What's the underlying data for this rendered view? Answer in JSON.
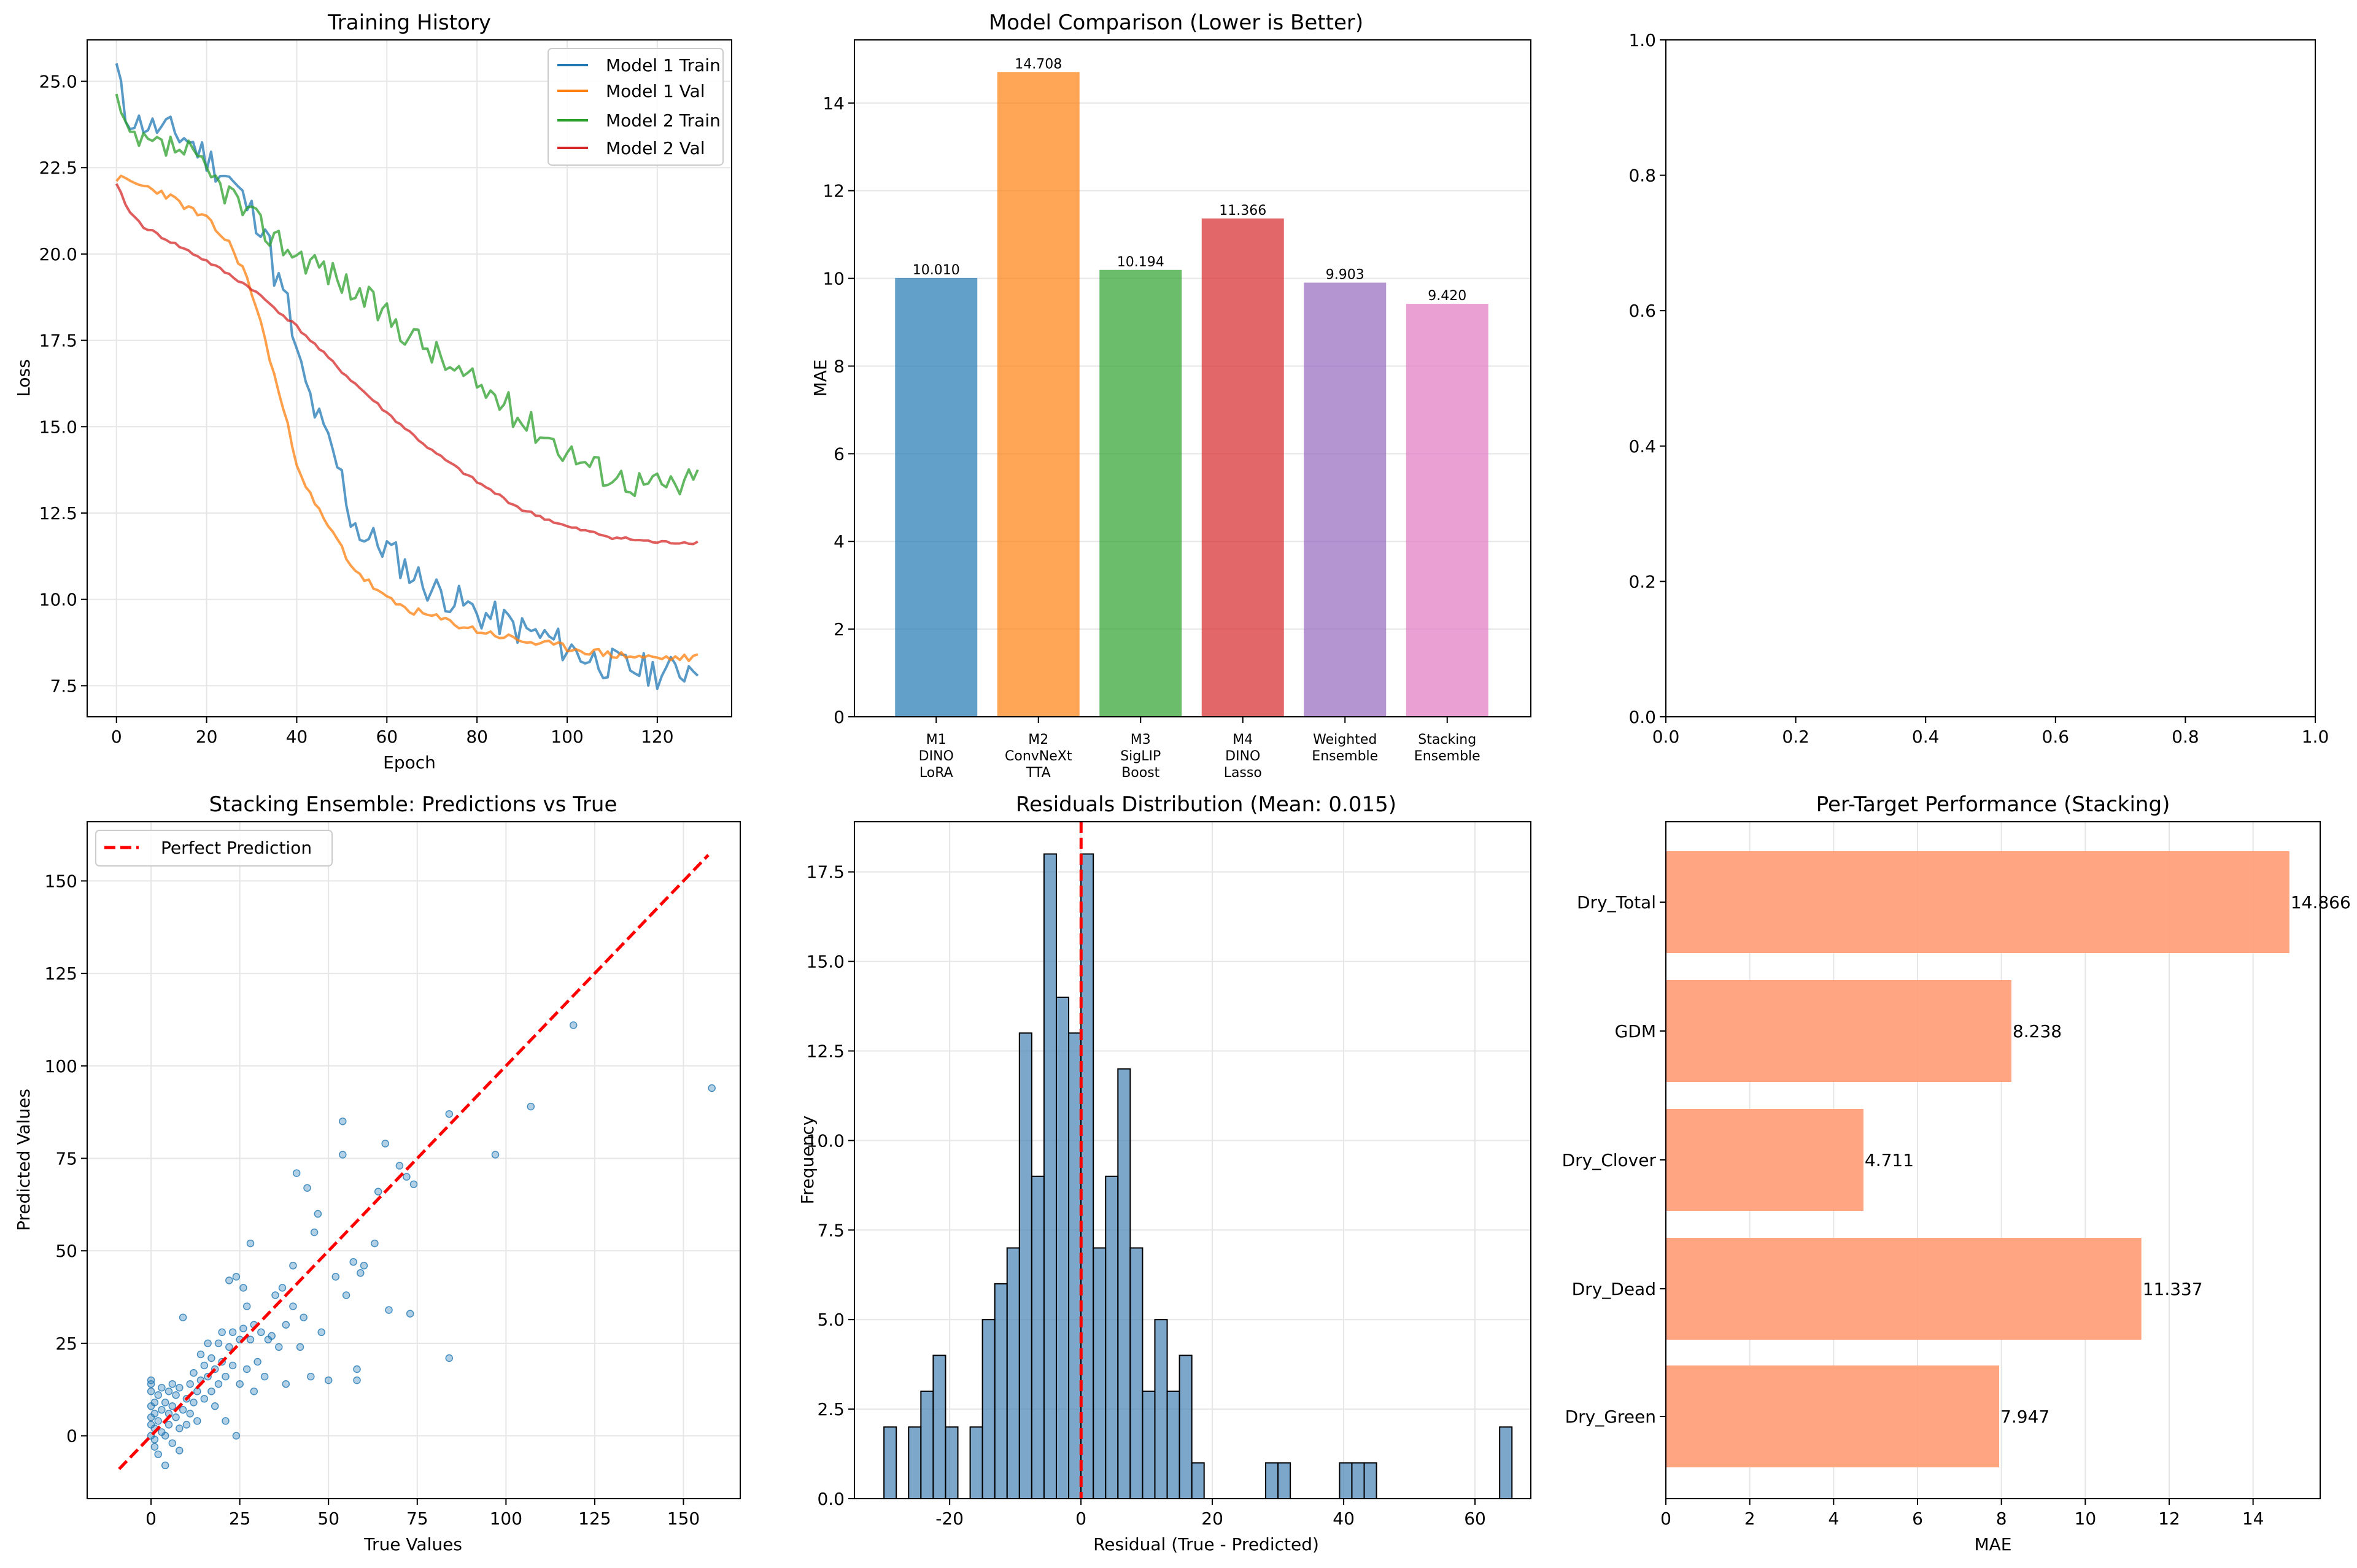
{
  "chart_data": [
    {
      "id": "training-history",
      "type": "line",
      "title": "Training History",
      "xlabel": "Epoch",
      "ylabel": "Loss",
      "xlim": [
        -6.5,
        136.5
      ],
      "ylim": [
        6.6,
        26.2
      ],
      "xticks": [
        0,
        20,
        40,
        60,
        80,
        100,
        120
      ],
      "yticks": [
        7.5,
        10.0,
        12.5,
        15.0,
        17.5,
        20.0,
        22.5,
        25.0
      ],
      "ytick_labels": [
        "7.5",
        "10.0",
        "12.5",
        "15.0",
        "17.5",
        "20.0",
        "22.5",
        "25.0"
      ],
      "grid": true,
      "legend": "upper right",
      "series": [
        {
          "name": "Model 1 Train",
          "color": "#1f77b4",
          "kind": "train",
          "anchors": [
            [
              0,
              25.4
            ],
            [
              2,
              24.0
            ],
            [
              5,
              23.8
            ],
            [
              10,
              23.6
            ],
            [
              15,
              23.4
            ],
            [
              20,
              22.8
            ],
            [
              25,
              22.2
            ],
            [
              30,
              21.2
            ],
            [
              33,
              20.8
            ],
            [
              35,
              19.5
            ],
            [
              38,
              18.5
            ],
            [
              40,
              17.0
            ],
            [
              43,
              15.8
            ],
            [
              46,
              14.8
            ],
            [
              48,
              14.2
            ],
            [
              50,
              13.5
            ],
            [
              52,
              12.4
            ],
            [
              55,
              11.8
            ],
            [
              60,
              11.5
            ],
            [
              65,
              10.8
            ],
            [
              70,
              10.3
            ],
            [
              75,
              10.0
            ],
            [
              80,
              9.6
            ],
            [
              85,
              9.4
            ],
            [
              90,
              9.1
            ],
            [
              95,
              8.9
            ],
            [
              100,
              8.6
            ],
            [
              105,
              8.3
            ],
            [
              110,
              8.1
            ],
            [
              115,
              8.0
            ],
            [
              120,
              7.9
            ],
            [
              125,
              7.9
            ],
            [
              129,
              8.2
            ]
          ],
          "amp": 0.5,
          "seed": 11
        },
        {
          "name": "Model 1 Val",
          "color": "#ff7f0e",
          "kind": "val",
          "anchors": [
            [
              0,
              22.2
            ],
            [
              10,
              21.8
            ],
            [
              20,
              21.0
            ],
            [
              25,
              20.3
            ],
            [
              28,
              19.6
            ],
            [
              31,
              18.5
            ],
            [
              34,
              17.0
            ],
            [
              37,
              15.5
            ],
            [
              40,
              14.0
            ],
            [
              43,
              13.0
            ],
            [
              46,
              12.3
            ],
            [
              48,
              11.9
            ],
            [
              50,
              11.5
            ],
            [
              52,
              11.0
            ],
            [
              55,
              10.6
            ],
            [
              60,
              10.0
            ],
            [
              65,
              9.7
            ],
            [
              70,
              9.5
            ],
            [
              80,
              9.1
            ],
            [
              90,
              8.8
            ],
            [
              100,
              8.6
            ],
            [
              110,
              8.4
            ],
            [
              120,
              8.3
            ],
            [
              129,
              8.3
            ]
          ],
          "amp": 0.12,
          "seed": 23
        },
        {
          "name": "Model 2 Train",
          "color": "#2ca02c",
          "kind": "train",
          "anchors": [
            [
              0,
              24.5
            ],
            [
              2,
              23.5
            ],
            [
              5,
              23.2
            ],
            [
              10,
              23.1
            ],
            [
              15,
              23.0
            ],
            [
              20,
              22.3
            ],
            [
              25,
              21.8
            ],
            [
              30,
              21.0
            ],
            [
              35,
              20.5
            ],
            [
              40,
              20.0
            ],
            [
              45,
              19.7
            ],
            [
              50,
              19.2
            ],
            [
              55,
              18.7
            ],
            [
              60,
              18.2
            ],
            [
              65,
              17.7
            ],
            [
              70,
              17.2
            ],
            [
              75,
              16.6
            ],
            [
              80,
              16.2
            ],
            [
              85,
              15.8
            ],
            [
              90,
              15.2
            ],
            [
              95,
              14.8
            ],
            [
              100,
              14.3
            ],
            [
              105,
              13.9
            ],
            [
              110,
              13.6
            ],
            [
              115,
              13.4
            ],
            [
              120,
              13.3
            ],
            [
              125,
              13.3
            ],
            [
              129,
              13.5
            ]
          ],
          "amp": 0.45,
          "seed": 37
        },
        {
          "name": "Model 2 Val",
          "color": "#d62728",
          "kind": "val",
          "anchors": [
            [
              0,
              22.0
            ],
            [
              3,
              21.2
            ],
            [
              6,
              20.8
            ],
            [
              10,
              20.5
            ],
            [
              20,
              19.8
            ],
            [
              30,
              19.0
            ],
            [
              40,
              17.9
            ],
            [
              50,
              16.6
            ],
            [
              60,
              15.4
            ],
            [
              70,
              14.3
            ],
            [
              80,
              13.4
            ],
            [
              90,
              12.6
            ],
            [
              100,
              12.1
            ],
            [
              110,
              11.8
            ],
            [
              120,
              11.65
            ],
            [
              129,
              11.65
            ]
          ],
          "amp": 0.05,
          "seed": 41
        }
      ]
    },
    {
      "id": "model-comparison",
      "type": "bar",
      "title": "Model Comparison (Lower is Better)",
      "xlabel": "",
      "ylabel": "MAE",
      "ylim": [
        0,
        15.44
      ],
      "yticks": [
        0,
        2,
        4,
        6,
        8,
        10,
        12,
        14
      ],
      "grid": true,
      "categories": [
        [
          "M1",
          "DINO",
          "LoRA"
        ],
        [
          "M2",
          "ConvNeXt",
          "TTA"
        ],
        [
          "M3",
          "SigLIP",
          "Boost"
        ],
        [
          "M4",
          "DINO",
          "Lasso"
        ],
        [
          "Weighted",
          "Ensemble"
        ],
        [
          "Stacking",
          "Ensemble"
        ]
      ],
      "values": [
        10.01,
        14.708,
        10.194,
        11.366,
        9.903,
        9.42
      ],
      "value_labels": [
        "10.010",
        "14.708",
        "10.194",
        "11.366",
        "9.903",
        "9.420"
      ],
      "colors": [
        "#1f77b4",
        "#ff7f0e",
        "#2ca02c",
        "#d62728",
        "#9467bd",
        "#e377c2"
      ]
    },
    {
      "id": "empty-axes",
      "type": "empty",
      "title": "",
      "xlim": [
        0,
        1
      ],
      "ylim": [
        0,
        1
      ],
      "xticks": [
        0.0,
        0.2,
        0.4,
        0.6,
        0.8,
        1.0
      ],
      "yticks": [
        0.0,
        0.2,
        0.4,
        0.6,
        0.8,
        1.0
      ],
      "xtick_labels": [
        "0.0",
        "0.2",
        "0.4",
        "0.6",
        "0.8",
        "1.0"
      ],
      "ytick_labels": [
        "0.0",
        "0.2",
        "0.4",
        "0.6",
        "0.8",
        "1.0"
      ],
      "grid": false
    },
    {
      "id": "stacking-scatter",
      "type": "scatter",
      "title": "Stacking Ensemble: Predictions vs True",
      "xlabel": "True Values",
      "ylabel": "Predicted Values",
      "xlim": [
        -18,
        166
      ],
      "ylim": [
        -17,
        166
      ],
      "xticks": [
        0,
        25,
        50,
        75,
        100,
        125,
        150
      ],
      "yticks": [
        0,
        25,
        50,
        75,
        100,
        125,
        150
      ],
      "grid": true,
      "legend": "upper left",
      "line": {
        "name": "Perfect Prediction",
        "color": "#ff0000",
        "x": [
          -9,
          157
        ],
        "y": [
          -9,
          157
        ]
      },
      "point_color": "#1f77b4",
      "points": [
        [
          0,
          0
        ],
        [
          0,
          3
        ],
        [
          0,
          5
        ],
        [
          0,
          8
        ],
        [
          0,
          12
        ],
        [
          0,
          14
        ],
        [
          0,
          15
        ],
        [
          1,
          -3
        ],
        [
          1,
          2
        ],
        [
          1,
          6
        ],
        [
          1,
          9
        ],
        [
          1,
          -1
        ],
        [
          2,
          4
        ],
        [
          2,
          11
        ],
        [
          2,
          -5
        ],
        [
          3,
          1
        ],
        [
          3,
          7
        ],
        [
          3,
          13
        ],
        [
          4,
          0
        ],
        [
          4,
          9
        ],
        [
          4,
          -8
        ],
        [
          5,
          3
        ],
        [
          5,
          12
        ],
        [
          5,
          6
        ],
        [
          6,
          -2
        ],
        [
          6,
          8
        ],
        [
          6,
          14
        ],
        [
          7,
          5
        ],
        [
          7,
          11
        ],
        [
          8,
          2
        ],
        [
          8,
          -4
        ],
        [
          8,
          13
        ],
        [
          9,
          7
        ],
        [
          9,
          32
        ],
        [
          10,
          10
        ],
        [
          10,
          3
        ],
        [
          11,
          14
        ],
        [
          11,
          6
        ],
        [
          12,
          9
        ],
        [
          12,
          17
        ],
        [
          13,
          12
        ],
        [
          13,
          4
        ],
        [
          14,
          15
        ],
        [
          14,
          22
        ],
        [
          15,
          10
        ],
        [
          15,
          19
        ],
        [
          16,
          16
        ],
        [
          16,
          25
        ],
        [
          17,
          12
        ],
        [
          17,
          21
        ],
        [
          18,
          18
        ],
        [
          18,
          8
        ],
        [
          19,
          25
        ],
        [
          19,
          14
        ],
        [
          20,
          20
        ],
        [
          20,
          28
        ],
        [
          21,
          4
        ],
        [
          21,
          16
        ],
        [
          22,
          42
        ],
        [
          22,
          24
        ],
        [
          23,
          19
        ],
        [
          23,
          28
        ],
        [
          24,
          0
        ],
        [
          24,
          43
        ],
        [
          25,
          26
        ],
        [
          25,
          14
        ],
        [
          26,
          40
        ],
        [
          26,
          29
        ],
        [
          27,
          18
        ],
        [
          27,
          35
        ],
        [
          28,
          52
        ],
        [
          28,
          26
        ],
        [
          29,
          12
        ],
        [
          29,
          30
        ],
        [
          30,
          20
        ],
        [
          31,
          28
        ],
        [
          32,
          16
        ],
        [
          33,
          26
        ],
        [
          34,
          27
        ],
        [
          35,
          38
        ],
        [
          36,
          24
        ],
        [
          37,
          40
        ],
        [
          38,
          14
        ],
        [
          38,
          30
        ],
        [
          40,
          35
        ],
        [
          40,
          46
        ],
        [
          41,
          71
        ],
        [
          42,
          24
        ],
        [
          43,
          32
        ],
        [
          44,
          67
        ],
        [
          45,
          16
        ],
        [
          46,
          55
        ],
        [
          47,
          60
        ],
        [
          48,
          28
        ],
        [
          50,
          15
        ],
        [
          52,
          43
        ],
        [
          54,
          85
        ],
        [
          54,
          76
        ],
        [
          55,
          38
        ],
        [
          57,
          47
        ],
        [
          58,
          15
        ],
        [
          58,
          18
        ],
        [
          59,
          44
        ],
        [
          60,
          46
        ],
        [
          63,
          52
        ],
        [
          64,
          66
        ],
        [
          66,
          79
        ],
        [
          67,
          34
        ],
        [
          70,
          73
        ],
        [
          72,
          70
        ],
        [
          73,
          33
        ],
        [
          74,
          68
        ],
        [
          84,
          87
        ],
        [
          84,
          21
        ],
        [
          97,
          76
        ],
        [
          107,
          89
        ],
        [
          119,
          111
        ],
        [
          158,
          94
        ]
      ]
    },
    {
      "id": "residuals-hist",
      "type": "histogram",
      "title": "Residuals Distribution (Mean: 0.015)",
      "xlabel": "Residual (True - Predicted)",
      "ylabel": "Frequency",
      "xlim": [
        -34.5,
        68.5
      ],
      "ylim": [
        0,
        18.9
      ],
      "xticks": [
        -20,
        0,
        20,
        40,
        60
      ],
      "yticks": [
        0.0,
        2.5,
        5.0,
        7.5,
        10.0,
        12.5,
        15.0,
        17.5
      ],
      "ytick_labels": [
        "0.0",
        "2.5",
        "5.0",
        "7.5",
        "10.0",
        "12.5",
        "15.0",
        "17.5"
      ],
      "grid": true,
      "bin_start": -30,
      "bin_width": 1.875,
      "counts": [
        2,
        0,
        2,
        3,
        4,
        2,
        0,
        2,
        5,
        6,
        7,
        13,
        9,
        18,
        14,
        13,
        18,
        7,
        9,
        12,
        7,
        3,
        5,
        3,
        4,
        1,
        0,
        0,
        0,
        0,
        0,
        1,
        1,
        0,
        0,
        0,
        0,
        1,
        1,
        1,
        0,
        0,
        0,
        0,
        0,
        0,
        0,
        0,
        0,
        0,
        2
      ],
      "bar_color": "#4682b4",
      "mean_line": {
        "x": 0.015,
        "color": "#ff0000"
      }
    },
    {
      "id": "per-target",
      "type": "barh",
      "title": "Per-Target Performance (Stacking)",
      "xlabel": "MAE",
      "xlim": [
        0,
        15.6
      ],
      "xticks": [
        0,
        2,
        4,
        6,
        8,
        10,
        12,
        14
      ],
      "grid": true,
      "categories": [
        "Dry_Total",
        "GDM",
        "Dry_Clover",
        "Dry_Dead",
        "Dry_Green"
      ],
      "values": [
        14.866,
        8.238,
        4.711,
        11.337,
        7.947
      ],
      "value_labels": [
        "14.866",
        "8.238",
        "4.711",
        "11.337",
        "7.947"
      ],
      "bar_color": "#ffa07a"
    }
  ]
}
